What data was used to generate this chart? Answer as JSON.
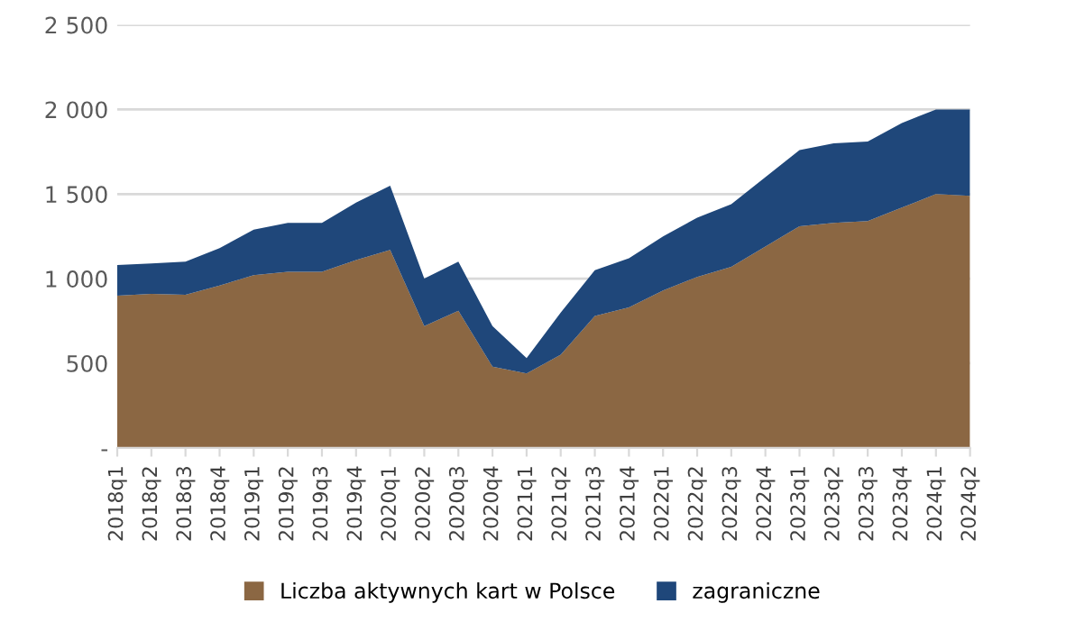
{
  "chart_data": {
    "type": "area",
    "stacked": true,
    "categories": [
      "2018q1",
      "2018q2",
      "2018q3",
      "2018q4",
      "2019q1",
      "2019q2",
      "2019q3",
      "2019q4",
      "2020q1",
      "2020q2",
      "2020q3",
      "2020q4",
      "2021q1",
      "2021q2",
      "2021q3",
      "2021q4",
      "2022q1",
      "2022q2",
      "2022q3",
      "2022q4",
      "2023q1",
      "2023q2",
      "2023q3",
      "2023q4",
      "2024q1",
      "2024q2"
    ],
    "series": [
      {
        "name": "Liczba aktywnych kart w Polsce",
        "color": "#8b6743",
        "values": [
          900,
          910,
          905,
          960,
          1020,
          1040,
          1040,
          1110,
          1170,
          720,
          810,
          480,
          440,
          550,
          780,
          830,
          930,
          1010,
          1070,
          1190,
          1310,
          1330,
          1340,
          1420,
          1500,
          1490
        ]
      },
      {
        "name": "zagraniczne",
        "color": "#1f477a",
        "values": [
          180,
          180,
          195,
          220,
          270,
          290,
          290,
          340,
          380,
          280,
          290,
          240,
          90,
          250,
          270,
          290,
          320,
          350,
          370,
          410,
          450,
          470,
          470,
          500,
          500,
          510
        ]
      }
    ],
    "ylim": [
      0,
      2500
    ],
    "yticks": [
      {
        "value": 0,
        "label": "-"
      },
      {
        "value": 500,
        "label": "500"
      },
      {
        "value": 1000,
        "label": "1 000"
      },
      {
        "value": 1500,
        "label": "1 500"
      },
      {
        "value": 2000,
        "label": "2 000"
      },
      {
        "value": 2500,
        "label": "2 500"
      }
    ],
    "grid": "y",
    "legend": "bottom"
  }
}
